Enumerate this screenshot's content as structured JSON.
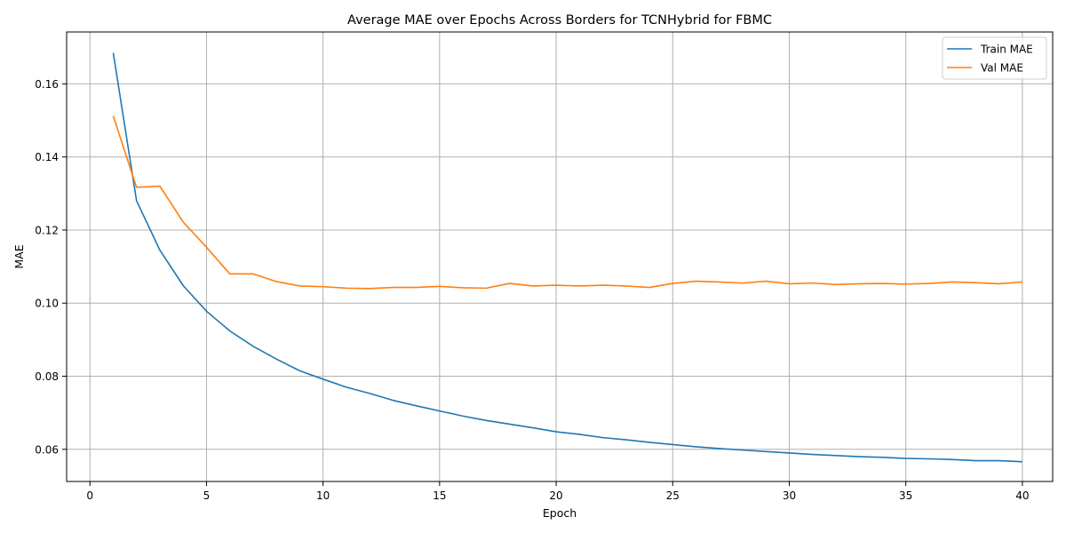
{
  "chart_data": {
    "type": "line",
    "title": "Average MAE over Epochs Across Borders for TCNHybrid for FBMC",
    "xlabel": "Epoch",
    "ylabel": "MAE",
    "xlim": [
      -1,
      41.3
    ],
    "ylim": [
      0.0512,
      0.1742
    ],
    "xticks": [
      0,
      5,
      10,
      15,
      20,
      25,
      30,
      35,
      40
    ],
    "yticks": [
      0.06,
      0.08,
      0.1,
      0.12,
      0.14,
      0.16
    ],
    "ytick_labels": [
      "0.06",
      "0.08",
      "0.10",
      "0.12",
      "0.14",
      "0.16"
    ],
    "grid": true,
    "legend_position": "top-right",
    "x": [
      1,
      2,
      3,
      4,
      5,
      6,
      7,
      8,
      9,
      10,
      11,
      12,
      13,
      14,
      15,
      16,
      17,
      18,
      19,
      20,
      21,
      22,
      23,
      24,
      25,
      26,
      27,
      28,
      29,
      30,
      31,
      32,
      33,
      34,
      35,
      36,
      37,
      38,
      39,
      40
    ],
    "series": [
      {
        "name": "Train MAE",
        "color": "#1f77b4",
        "values": [
          0.1685,
          0.128,
          0.1145,
          0.1048,
          0.0978,
          0.0924,
          0.0882,
          0.0847,
          0.0815,
          0.0792,
          0.077,
          0.0753,
          0.0734,
          0.0719,
          0.0705,
          0.0691,
          0.0679,
          0.0669,
          0.0659,
          0.0648,
          0.0641,
          0.0632,
          0.0626,
          0.0619,
          0.0613,
          0.0607,
          0.0602,
          0.0598,
          0.0594,
          0.059,
          0.0586,
          0.0583,
          0.058,
          0.0578,
          0.0575,
          0.0574,
          0.0572,
          0.0569,
          0.0569,
          0.0566
        ]
      },
      {
        "name": "Val MAE",
        "color": "#ff7f0e",
        "values": [
          0.1512,
          0.1317,
          0.132,
          0.1222,
          0.1153,
          0.108,
          0.108,
          0.1059,
          0.1047,
          0.1045,
          0.1041,
          0.104,
          0.1043,
          0.1043,
          0.1046,
          0.1042,
          0.1041,
          0.1054,
          0.1047,
          0.1049,
          0.1047,
          0.1049,
          0.1047,
          0.1043,
          0.1054,
          0.106,
          0.1058,
          0.1055,
          0.106,
          0.1053,
          0.1055,
          0.1051,
          0.1053,
          0.1054,
          0.1052,
          0.1054,
          0.1058,
          0.1056,
          0.1053,
          0.1058
        ]
      }
    ]
  }
}
